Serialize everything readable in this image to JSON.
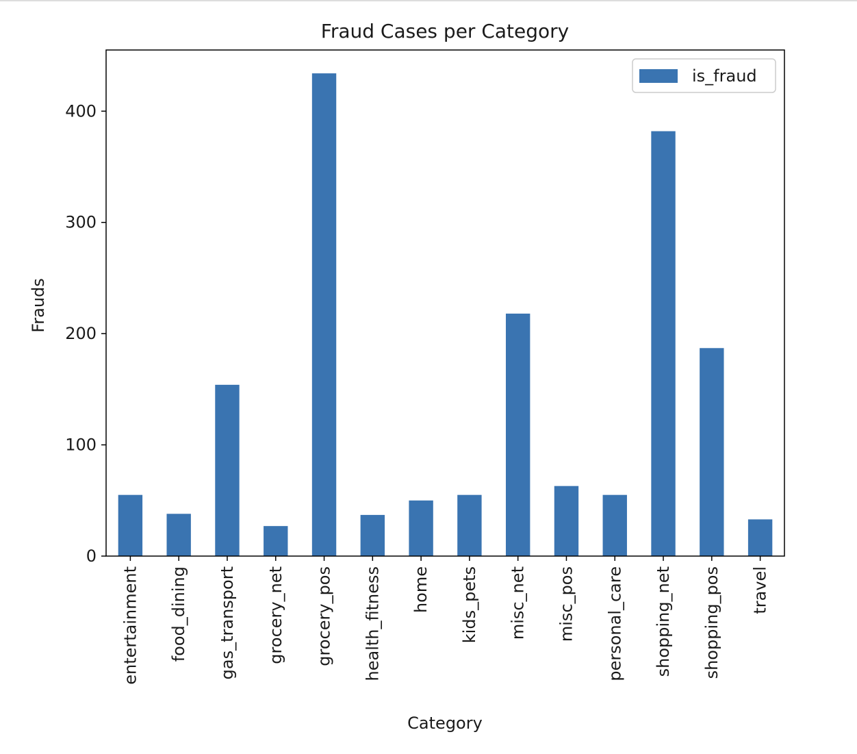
{
  "chart_data": {
    "type": "bar",
    "title": "Fraud Cases per Category",
    "xlabel": "Category",
    "ylabel": "Frauds",
    "categories": [
      "entertainment",
      "food_dining",
      "gas_transport",
      "grocery_net",
      "grocery_pos",
      "health_fitness",
      "home",
      "kids_pets",
      "misc_net",
      "misc_pos",
      "personal_care",
      "shopping_net",
      "shopping_pos",
      "travel"
    ],
    "series": [
      {
        "name": "is_fraud",
        "color": "#3a74b1",
        "values": [
          55,
          38,
          154,
          27,
          434,
          37,
          50,
          55,
          218,
          63,
          55,
          382,
          187,
          33
        ]
      }
    ],
    "yticks": [
      0,
      100,
      200,
      300,
      400
    ],
    "ylim": [
      0,
      455
    ],
    "grid": false,
    "legend": "top-right"
  }
}
